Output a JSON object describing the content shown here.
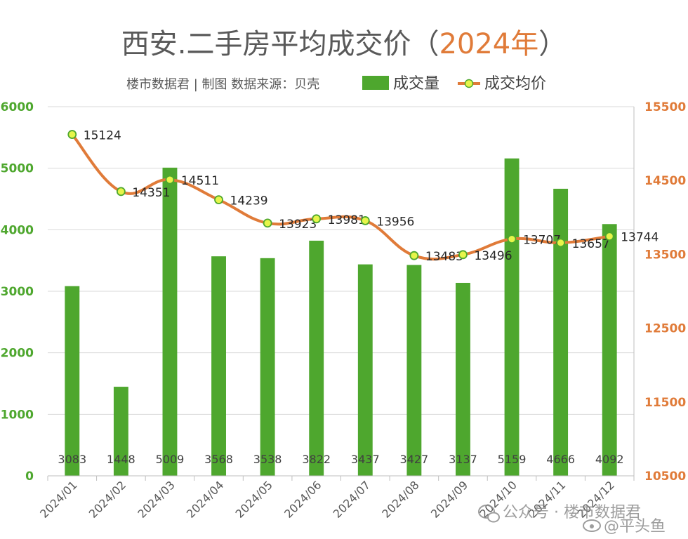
{
  "header": {
    "title_main": "西安.二手房平均成交价",
    "title_paren_open": "（",
    "title_year": "2024年",
    "title_paren_close": "）",
    "subtitle": "楼市数据君 | 制图   数据来源：贝壳"
  },
  "colors": {
    "bar": "#4ea72e",
    "line": "#e07b39",
    "marker_fill": "#e6f54a",
    "marker_stroke": "#4ea72e",
    "grid": "#d9d9d9"
  },
  "watermark": {
    "text1": "公众号 · 楼市数据君",
    "text2": "@平头鱼",
    "icon1": "wechat-icon",
    "icon2": "weibo-icon"
  },
  "chart_data": {
    "type": "bar+line",
    "categories": [
      "2024/01",
      "2024/02",
      "2024/03",
      "2024/04",
      "2024/05",
      "2024/06",
      "2024/07",
      "2024/08",
      "2024/09",
      "2024/10",
      "2024/11",
      "2024/12"
    ],
    "series": [
      {
        "name": "成交量",
        "type": "bar",
        "axis": "left",
        "values": [
          3083,
          1448,
          5009,
          3568,
          3538,
          3822,
          3437,
          3427,
          3137,
          5159,
          4666,
          4092
        ]
      },
      {
        "name": "成交均价",
        "type": "line",
        "axis": "right",
        "smooth": true,
        "values": [
          15124,
          14351,
          14511,
          14239,
          13923,
          13981,
          13956,
          13483,
          13496,
          13707,
          13657,
          13744
        ]
      }
    ],
    "y_left": {
      "min": 0,
      "max": 6000,
      "ticks": [
        "0",
        "1000",
        "2000",
        "3000",
        "4000",
        "5000",
        "6000"
      ]
    },
    "y_right": {
      "min": 10500,
      "max": 15500,
      "ticks": [
        "10500",
        "11500",
        "12500",
        "13500",
        "14500",
        "15500"
      ]
    },
    "grid": true,
    "legend": "top-right"
  }
}
